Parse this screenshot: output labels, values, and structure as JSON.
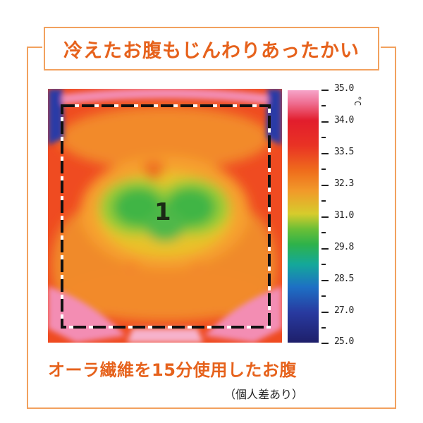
{
  "title": "冷えたお腹もじんわりあったかい",
  "thermo_image": {
    "region_label": "1"
  },
  "color_scale": {
    "unit": "°C",
    "labels": [
      "35.0",
      "34.0",
      "33.5",
      "32.3",
      "31.0",
      "29.8",
      "28.5",
      "27.0",
      "25.0"
    ]
  },
  "caption": "オーラ繊維を15分使用したお腹",
  "note": "（個人差あり）",
  "colors": {
    "accent": "#e6621c",
    "frame": "#f2a15e"
  }
}
